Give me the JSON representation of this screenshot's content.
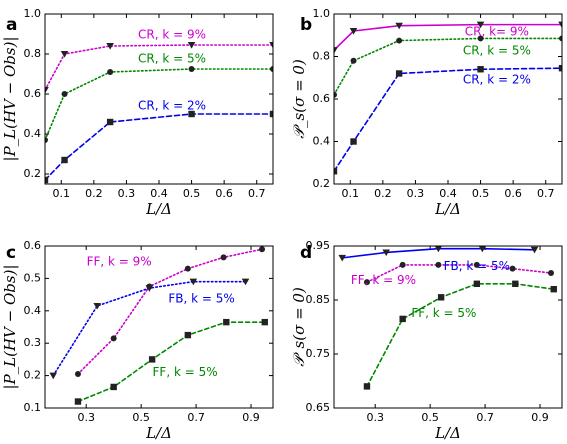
{
  "chart_data": [
    {
      "panel": "a",
      "type": "line",
      "xlabel": "L/Δ",
      "ylabel": "|P_L(HV − Obs)|",
      "xlim": [
        0.05,
        0.75
      ],
      "ylim": [
        0.15,
        1.0
      ],
      "xticks": [
        0.1,
        0.2,
        0.3,
        0.4,
        0.5,
        0.6,
        0.7
      ],
      "xtick_labels": [
        "0.1",
        "0.2",
        "0.3",
        "0.4",
        "0.5",
        "0.6",
        "0.7"
      ],
      "yticks": [
        0.2,
        0.4,
        0.6,
        0.8,
        1.0
      ],
      "ytick_labels": [
        "0.2",
        "0.4",
        "0.6",
        "0.8",
        "1.0"
      ],
      "grid": false,
      "series": [
        {
          "name": "CR, k = 9%",
          "color": "#cc00cc",
          "dash": "1.5 2.5",
          "marker": "triangle-down",
          "x": [
            0.05,
            0.11,
            0.25,
            0.5,
            0.75
          ],
          "y": [
            0.62,
            0.8,
            0.84,
            0.845,
            0.845
          ],
          "label_pos": [
            0.44,
            0.895
          ]
        },
        {
          "name": "CR, k = 5%",
          "color": "#008800",
          "dash": "1.5 2.5",
          "marker": "circle",
          "x": [
            0.05,
            0.11,
            0.25,
            0.5,
            0.75
          ],
          "y": [
            0.37,
            0.6,
            0.71,
            0.725,
            0.725
          ],
          "label_pos": [
            0.44,
            0.775
          ]
        },
        {
          "name": "CR, k = 2%",
          "color": "#0000ee",
          "dash": "5 3",
          "marker": "square",
          "x": [
            0.05,
            0.11,
            0.25,
            0.5,
            0.75
          ],
          "y": [
            0.17,
            0.27,
            0.46,
            0.5,
            0.5
          ],
          "label_pos": [
            0.44,
            0.54
          ]
        }
      ]
    },
    {
      "panel": "b",
      "type": "line",
      "xlabel": "L/Δ",
      "ylabel": "𝒫_s(σ = 0)",
      "xlim": [
        0.05,
        0.75
      ],
      "ylim": [
        0.2,
        1.0
      ],
      "xticks": [
        0.1,
        0.2,
        0.3,
        0.4,
        0.5,
        0.6,
        0.7
      ],
      "xtick_labels": [
        "0.1",
        "0.2",
        "0.3",
        "0.4",
        "0.5",
        "0.6",
        "0.7"
      ],
      "yticks": [
        0.2,
        0.4,
        0.6,
        0.8,
        1.0
      ],
      "ytick_labels": [
        "0.2",
        "0.4",
        "0.6",
        "0.8",
        "1.0"
      ],
      "grid": false,
      "series": [
        {
          "name": "CR, k= 9%",
          "color": "#cc00cc",
          "dash": "",
          "marker": "triangle-down",
          "x": [
            0.05,
            0.11,
            0.25,
            0.5,
            0.75
          ],
          "y": [
            0.83,
            0.92,
            0.945,
            0.95,
            0.95
          ],
          "label_pos": [
            0.55,
            0.915
          ]
        },
        {
          "name": "CR, k = 5%",
          "color": "#008800",
          "dash": "1.5 2.5",
          "marker": "circle",
          "x": [
            0.05,
            0.11,
            0.25,
            0.5,
            0.75
          ],
          "y": [
            0.62,
            0.78,
            0.875,
            0.885,
            0.885
          ],
          "label_pos": [
            0.55,
            0.825
          ]
        },
        {
          "name": "CR, k = 2%",
          "color": "#0000ee",
          "dash": "5 3",
          "marker": "square",
          "x": [
            0.05,
            0.11,
            0.25,
            0.5,
            0.75
          ],
          "y": [
            0.26,
            0.4,
            0.72,
            0.74,
            0.745
          ],
          "label_pos": [
            0.55,
            0.69
          ]
        }
      ]
    },
    {
      "panel": "c",
      "type": "line",
      "xlabel": "L/Δ",
      "ylabel": "|P_L(HV − Obs)|",
      "xlim": [
        0.15,
        0.98
      ],
      "ylim": [
        0.1,
        0.6
      ],
      "xticks": [
        0.3,
        0.5,
        0.7,
        0.9
      ],
      "xtick_labels": [
        "0.3",
        "0.5",
        "0.7",
        "0.9"
      ],
      "yticks": [
        0.1,
        0.2,
        0.3,
        0.4,
        0.5,
        0.6
      ],
      "ytick_labels": [
        "0.1",
        "0.2",
        "0.3",
        "0.4",
        "0.5",
        "0.6"
      ],
      "grid": false,
      "series": [
        {
          "name": "FF, k = 9%",
          "color": "#cc00cc",
          "dash": "1.5 2.5",
          "marker": "circle",
          "x": [
            0.27,
            0.4,
            0.53,
            0.67,
            0.8,
            0.94
          ],
          "y": [
            0.205,
            0.315,
            0.475,
            0.53,
            0.565,
            0.59
          ],
          "label_pos": [
            0.42,
            0.55
          ]
        },
        {
          "name": "FB, k = 5%",
          "color": "#0000ee",
          "dash": "1.5 2.5",
          "marker": "triangle-down",
          "x": [
            0.18,
            0.34,
            0.53,
            0.69,
            0.88
          ],
          "y": [
            0.2,
            0.415,
            0.47,
            0.49,
            0.49
          ],
          "label_pos": [
            0.72,
            0.437
          ]
        },
        {
          "name": "FF, k = 5%",
          "color": "#008800",
          "dash": "4 3",
          "marker": "square",
          "x": [
            0.27,
            0.4,
            0.54,
            0.67,
            0.81,
            0.95
          ],
          "y": [
            0.12,
            0.165,
            0.25,
            0.325,
            0.365,
            0.365
          ],
          "label_pos": [
            0.66,
            0.21
          ]
        }
      ]
    },
    {
      "panel": "d",
      "type": "line",
      "xlabel": "L/Δ",
      "ylabel": "𝒫_s(σ = 0)",
      "xlim": [
        0.15,
        0.98
      ],
      "ylim": [
        0.65,
        0.95
      ],
      "xticks": [
        0.3,
        0.5,
        0.7,
        0.9
      ],
      "xtick_labels": [
        "0.3",
        "0.5",
        "0.7",
        "0.9"
      ],
      "yticks": [
        0.65,
        0.75,
        0.85,
        0.95
      ],
      "ytick_labels": [
        "0.65",
        "0.75",
        "0.85",
        "0.95"
      ],
      "grid": false,
      "series": [
        {
          "name": "FB, k = 5%",
          "color": "#0000ee",
          "dash": "",
          "marker": "triangle-down",
          "x": [
            0.18,
            0.34,
            0.53,
            0.69,
            0.88
          ],
          "y": [
            0.928,
            0.938,
            0.945,
            0.945,
            0.943
          ],
          "label_pos": [
            0.67,
            0.912
          ]
        },
        {
          "name": "FF, k = 9%",
          "color": "#cc00cc",
          "dash": "1.5 2.5",
          "marker": "circle",
          "x": [
            0.27,
            0.4,
            0.53,
            0.67,
            0.8,
            0.94
          ],
          "y": [
            0.883,
            0.915,
            0.915,
            0.915,
            0.908,
            0.9
          ],
          "label_pos": [
            0.33,
            0.886
          ]
        },
        {
          "name": "FF, k = 5%",
          "color": "#008800",
          "dash": "4 3",
          "marker": "square",
          "x": [
            0.27,
            0.4,
            0.54,
            0.67,
            0.81,
            0.95
          ],
          "y": [
            0.69,
            0.815,
            0.855,
            0.88,
            0.88,
            0.87
          ],
          "label_pos": [
            0.55,
            0.825
          ]
        }
      ]
    }
  ]
}
